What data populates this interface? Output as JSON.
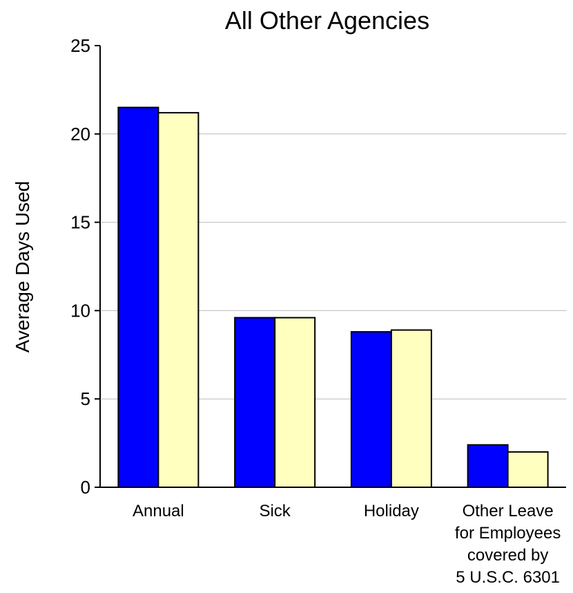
{
  "chart_data": {
    "type": "bar",
    "title": "All Other Agencies",
    "xlabel": "",
    "ylabel": "Average Days Used",
    "ylim": [
      0,
      25
    ],
    "yticks": [
      0,
      5,
      10,
      15,
      20,
      25
    ],
    "grid": true,
    "categories": [
      [
        "Annual"
      ],
      [
        "Sick"
      ],
      [
        "Holiday"
      ],
      [
        "Other Leave",
        "for Employees",
        "covered by",
        "5 U.S.C. 6301"
      ]
    ],
    "series": [
      {
        "color": "#0000ff",
        "values": [
          21.5,
          9.6,
          8.8,
          2.4
        ]
      },
      {
        "color": "#ffffc0",
        "values": [
          21.2,
          9.6,
          8.9,
          2.0
        ]
      }
    ]
  }
}
